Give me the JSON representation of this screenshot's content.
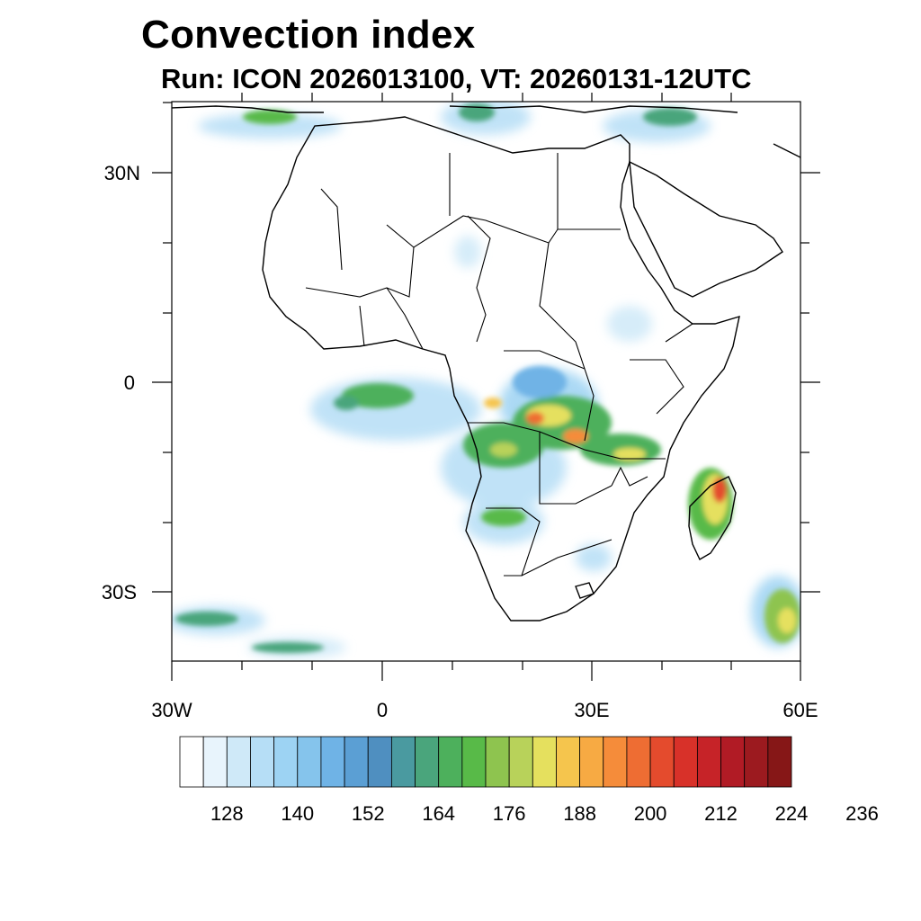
{
  "title": "Convection index",
  "subtitle": "Run: ICON 2026013100,  VT: 20260131-12UTC",
  "axes": {
    "y_labels": [
      {
        "lat": 30,
        "label": "30N"
      },
      {
        "lat": 0,
        "label": "0"
      },
      {
        "lat": -30,
        "label": "30S"
      }
    ],
    "x_labels": [
      {
        "lon": -30,
        "label": "30W"
      },
      {
        "lon": 0,
        "label": "0"
      },
      {
        "lon": 30,
        "label": "30E"
      },
      {
        "lon": 60,
        "label": "60E"
      }
    ],
    "lon_range": [
      -30,
      60
    ],
    "lat_range": [
      -40,
      40
    ]
  },
  "colorbar": {
    "colors": [
      "#ffffff",
      "#e8f4fc",
      "#cfe9f8",
      "#b6def6",
      "#9dd3f3",
      "#85c4ec",
      "#6fb3e6",
      "#5b9fd4",
      "#4f8fc0",
      "#4a9aa0",
      "#4aa57c",
      "#4db05c",
      "#58ba48",
      "#8ec44f",
      "#b8d25a",
      "#e5e05e",
      "#f5c54d",
      "#f7aa43",
      "#f58c3a",
      "#ee6d33",
      "#e44b2d",
      "#d83129",
      "#c62328",
      "#b11b25",
      "#9c1a1f",
      "#861717"
    ],
    "tick_labels": [
      "128",
      "140",
      "152",
      "164",
      "176",
      "188",
      "200",
      "212",
      "224",
      "236"
    ]
  }
}
